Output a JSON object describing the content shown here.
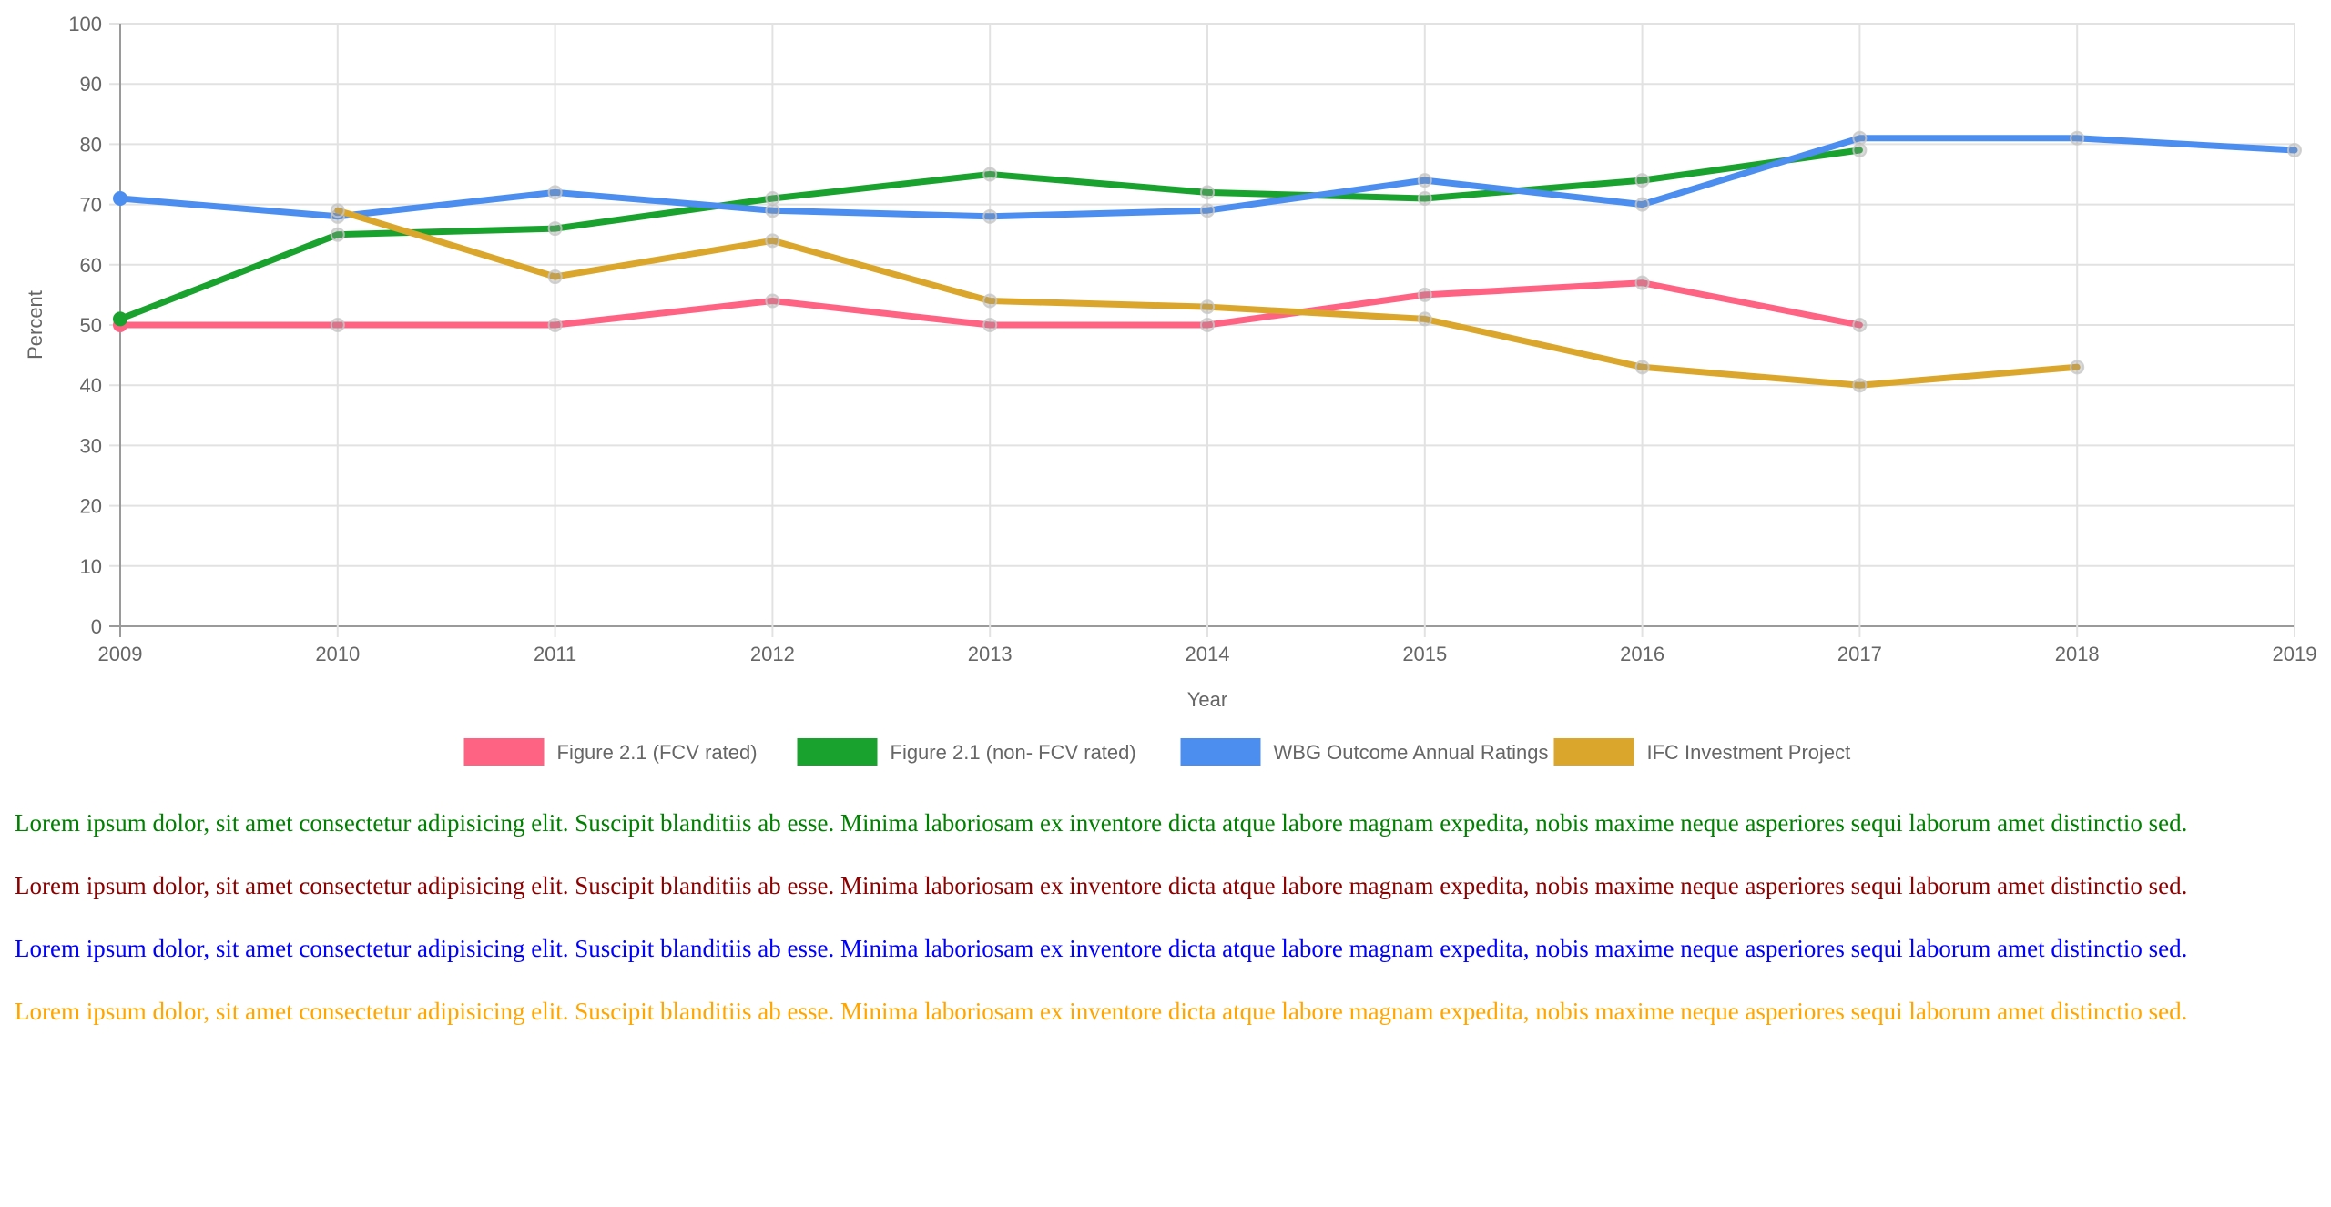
{
  "chart_data": {
    "type": "line",
    "title": "",
    "xlabel": "Year",
    "ylabel": "Percent",
    "x": [
      "2009",
      "2010",
      "2011",
      "2012",
      "2013",
      "2014",
      "2015",
      "2016",
      "2017",
      "2018",
      "2019"
    ],
    "y_ticks": [
      "0",
      "10",
      "20",
      "30",
      "40",
      "50",
      "60",
      "70",
      "80",
      "90",
      "100"
    ],
    "ylim": [
      0,
      100
    ],
    "grid": true,
    "legend_position": "bottom",
    "series": [
      {
        "name": "Figure 2.1 (FCV rated)",
        "color": "#ff6384",
        "values": [
          50,
          50,
          50,
          54,
          50,
          50,
          55,
          57,
          50,
          null,
          null
        ]
      },
      {
        "name": "Figure 2.1 (non- FCV rated)",
        "color": "#1aa22e",
        "values": [
          51,
          65,
          66,
          71,
          75,
          72,
          71,
          74,
          79,
          null,
          null
        ]
      },
      {
        "name": "WBG Outcome Annual Ratings",
        "color": "#4c8ef0",
        "values": [
          71,
          68,
          72,
          69,
          68,
          69,
          74,
          70,
          81,
          81,
          79
        ]
      },
      {
        "name": "IFC Investment Project",
        "color": "#dba62c",
        "values": [
          null,
          69,
          58,
          64,
          54,
          53,
          51,
          43,
          40,
          43,
          null
        ]
      }
    ]
  },
  "paragraphs": [
    {
      "text": "Lorem ipsum dolor, sit amet consectetur adipisicing elit. Suscipit blanditiis ab esse. Minima laboriosam ex inventore dicta atque labore magnam expedita, nobis maxime neque asperiores sequi laborum amet distinctio sed.",
      "color": "#008000"
    },
    {
      "text": "Lorem ipsum dolor, sit amet consectetur adipisicing elit. Suscipit blanditiis ab esse. Minima laboriosam ex inventore dicta atque labore magnam expedita, nobis maxime neque asperiores sequi laborum amet distinctio sed.",
      "color": "#8b0000"
    },
    {
      "text": "Lorem ipsum dolor, sit amet consectetur adipisicing elit. Suscipit blanditiis ab esse. Minima laboriosam ex inventore dicta atque labore magnam expedita, nobis maxime neque asperiores sequi laborum amet distinctio sed.",
      "color": "#0000ff"
    },
    {
      "text": "Lorem ipsum dolor, sit amet consectetur adipisicing elit. Suscipit blanditiis ab esse. Minima laboriosam ex inventore dicta atque labore magnam expedita, nobis maxime neque asperiores sequi laborum amet distinctio sed.",
      "color": "#ffa500"
    }
  ]
}
